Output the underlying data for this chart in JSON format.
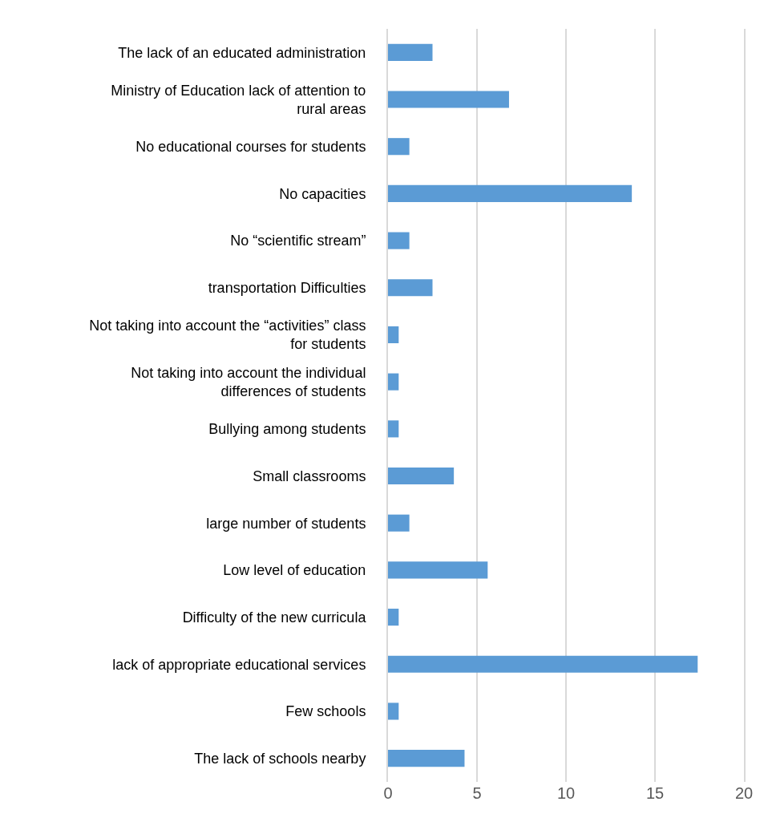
{
  "chart_data": {
    "type": "bar",
    "orientation": "horizontal",
    "categories": [
      "The lack of an educated administration",
      "Ministry of Education lack of attention to rural areas",
      "No educational courses for students",
      "No capacities",
      "No “scientific stream”",
      "transportation Difficulties",
      "Not taking into account the “activities” class for students",
      "Not taking into account the individual differences of students",
      "Bullying among students",
      "Small classrooms",
      "large number of students",
      "Low level of education",
      "Difficulty of the new curricula",
      "lack of appropriate educational services",
      "Few schools",
      "The lack of schools nearby"
    ],
    "values": [
      2.5,
      6.8,
      1.2,
      13.7,
      1.2,
      2.5,
      0.6,
      0.6,
      0.6,
      3.7,
      1.2,
      5.6,
      0.6,
      17.4,
      0.6,
      4.3
    ],
    "color": "#5b9bd5",
    "xlim": [
      0,
      20
    ],
    "xticks": [
      0,
      5,
      10,
      15,
      20
    ],
    "grid": "x"
  }
}
